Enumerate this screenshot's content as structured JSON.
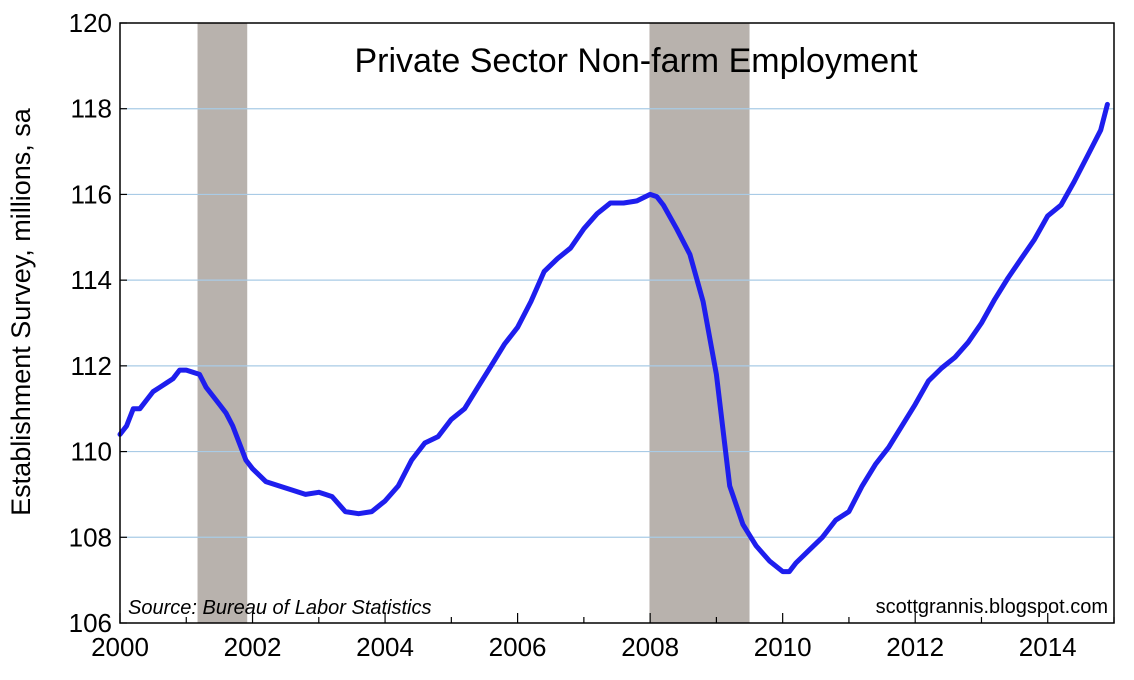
{
  "chart_data": {
    "type": "line",
    "title": "Private Sector Non-farm Employment",
    "ylabel": "Establishment Survey, millions, sa",
    "xlabel": "",
    "xlim": [
      2000,
      2015
    ],
    "ylim": [
      106,
      120
    ],
    "x_ticks": [
      "2000",
      "2002",
      "2004",
      "2006",
      "2008",
      "2010",
      "2012",
      "2014"
    ],
    "y_ticks": [
      "106",
      "108",
      "110",
      "112",
      "114",
      "116",
      "118",
      "120"
    ],
    "grid": "horizontal",
    "source_note": "Source:  Bureau of Labor Statistics",
    "watermark": "scottgrannis.blogspot.com",
    "recessions": [
      {
        "start": 2001.17,
        "end": 2001.92
      },
      {
        "start": 2007.99,
        "end": 2009.5
      }
    ],
    "colors": {
      "line": "#1e1eee",
      "recession": "#b8b2ad",
      "grid": "#a9cbe6",
      "frame": "#000000"
    },
    "series": [
      {
        "x": [
          2000.0,
          2000.1,
          2000.2,
          2000.3,
          2000.4,
          2000.5,
          2000.6,
          2000.7,
          2000.8,
          2000.9,
          2001.0,
          2001.1,
          2001.2,
          2001.3,
          2001.4,
          2001.5,
          2001.6,
          2001.7,
          2001.8,
          2001.9,
          2002.0,
          2002.2,
          2002.4,
          2002.6,
          2002.8,
          2003.0,
          2003.1,
          2003.2,
          2003.4,
          2003.6,
          2003.8,
          2004.0,
          2004.2,
          2004.4,
          2004.6,
          2004.8,
          2005.0,
          2005.2,
          2005.4,
          2005.6,
          2005.8,
          2006.0,
          2006.2,
          2006.4,
          2006.6,
          2006.8,
          2007.0,
          2007.2,
          2007.4,
          2007.6,
          2007.8,
          2008.0,
          2008.1,
          2008.2,
          2008.4,
          2008.6,
          2008.8,
          2009.0,
          2009.2,
          2009.4,
          2009.6,
          2009.8,
          2010.0,
          2010.1,
          2010.2,
          2010.4,
          2010.6,
          2010.8,
          2011.0,
          2011.2,
          2011.4,
          2011.6,
          2011.8,
          2012.0,
          2012.2,
          2012.4,
          2012.6,
          2012.8,
          2013.0,
          2013.2,
          2013.4,
          2013.6,
          2013.8,
          2014.0,
          2014.2,
          2014.4,
          2014.6,
          2014.8,
          2014.9
        ],
        "values": [
          110.4,
          110.6,
          111.0,
          111.0,
          111.2,
          111.4,
          111.5,
          111.6,
          111.7,
          111.9,
          111.9,
          111.85,
          111.8,
          111.5,
          111.3,
          111.1,
          110.9,
          110.6,
          110.2,
          109.8,
          109.6,
          109.3,
          109.2,
          109.1,
          109.0,
          109.05,
          109.0,
          108.95,
          108.6,
          108.55,
          108.6,
          108.85,
          109.2,
          109.8,
          110.2,
          110.35,
          110.75,
          111.0,
          111.5,
          112.0,
          112.5,
          112.9,
          113.5,
          114.2,
          114.5,
          114.75,
          115.2,
          115.55,
          115.8,
          115.8,
          115.85,
          116.0,
          115.95,
          115.75,
          115.2,
          114.6,
          113.5,
          111.8,
          109.2,
          108.3,
          107.8,
          107.45,
          107.2,
          107.2,
          107.4,
          107.7,
          108.0,
          108.4,
          108.6,
          109.2,
          109.7,
          110.1,
          110.6,
          111.1,
          111.65,
          111.95,
          112.2,
          112.55,
          113.0,
          113.55,
          114.05,
          114.5,
          114.95,
          115.5,
          115.75,
          116.3,
          116.9,
          117.5,
          118.1
        ]
      }
    ]
  }
}
